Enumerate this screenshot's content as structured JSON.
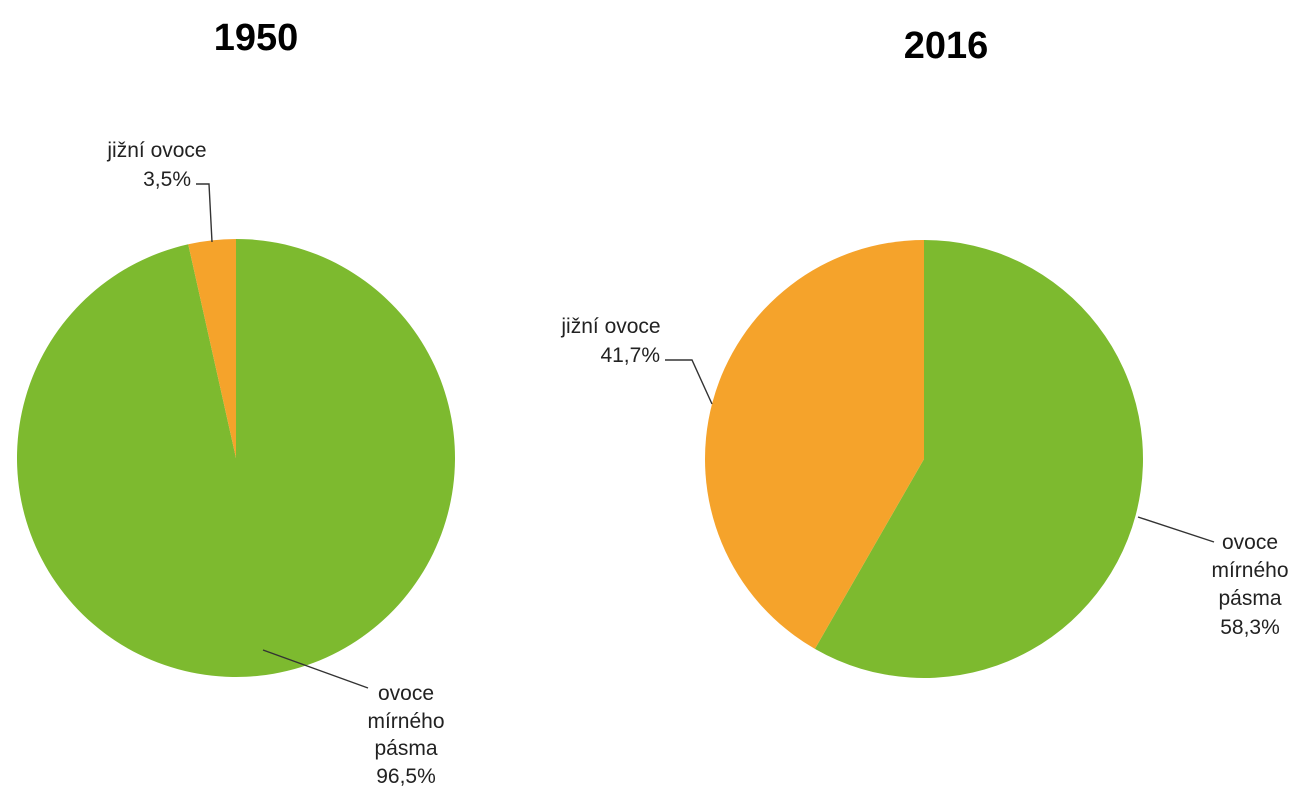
{
  "colors": {
    "temperate": "#7dba2f",
    "tropical": "#f5a32b"
  },
  "chart_data": [
    {
      "type": "pie",
      "title": "1950",
      "slices": [
        {
          "label_lines": [
            "jižní ovoce"
          ],
          "value": 3.5,
          "value_text": "3,5%",
          "color": "#f5a32b"
        },
        {
          "label_lines": [
            "ovoce",
            "mírného",
            "pásma"
          ],
          "value": 96.5,
          "value_text": "96,5%",
          "color": "#7dba2f"
        }
      ]
    },
    {
      "type": "pie",
      "title": "2016",
      "slices": [
        {
          "label_lines": [
            "jižní ovoce"
          ],
          "value": 41.7,
          "value_text": "41,7%",
          "color": "#f5a32b"
        },
        {
          "label_lines": [
            "ovoce",
            "mírného",
            "pásma"
          ],
          "value": 58.3,
          "value_text": "58,3%",
          "color": "#7dba2f"
        }
      ]
    }
  ]
}
